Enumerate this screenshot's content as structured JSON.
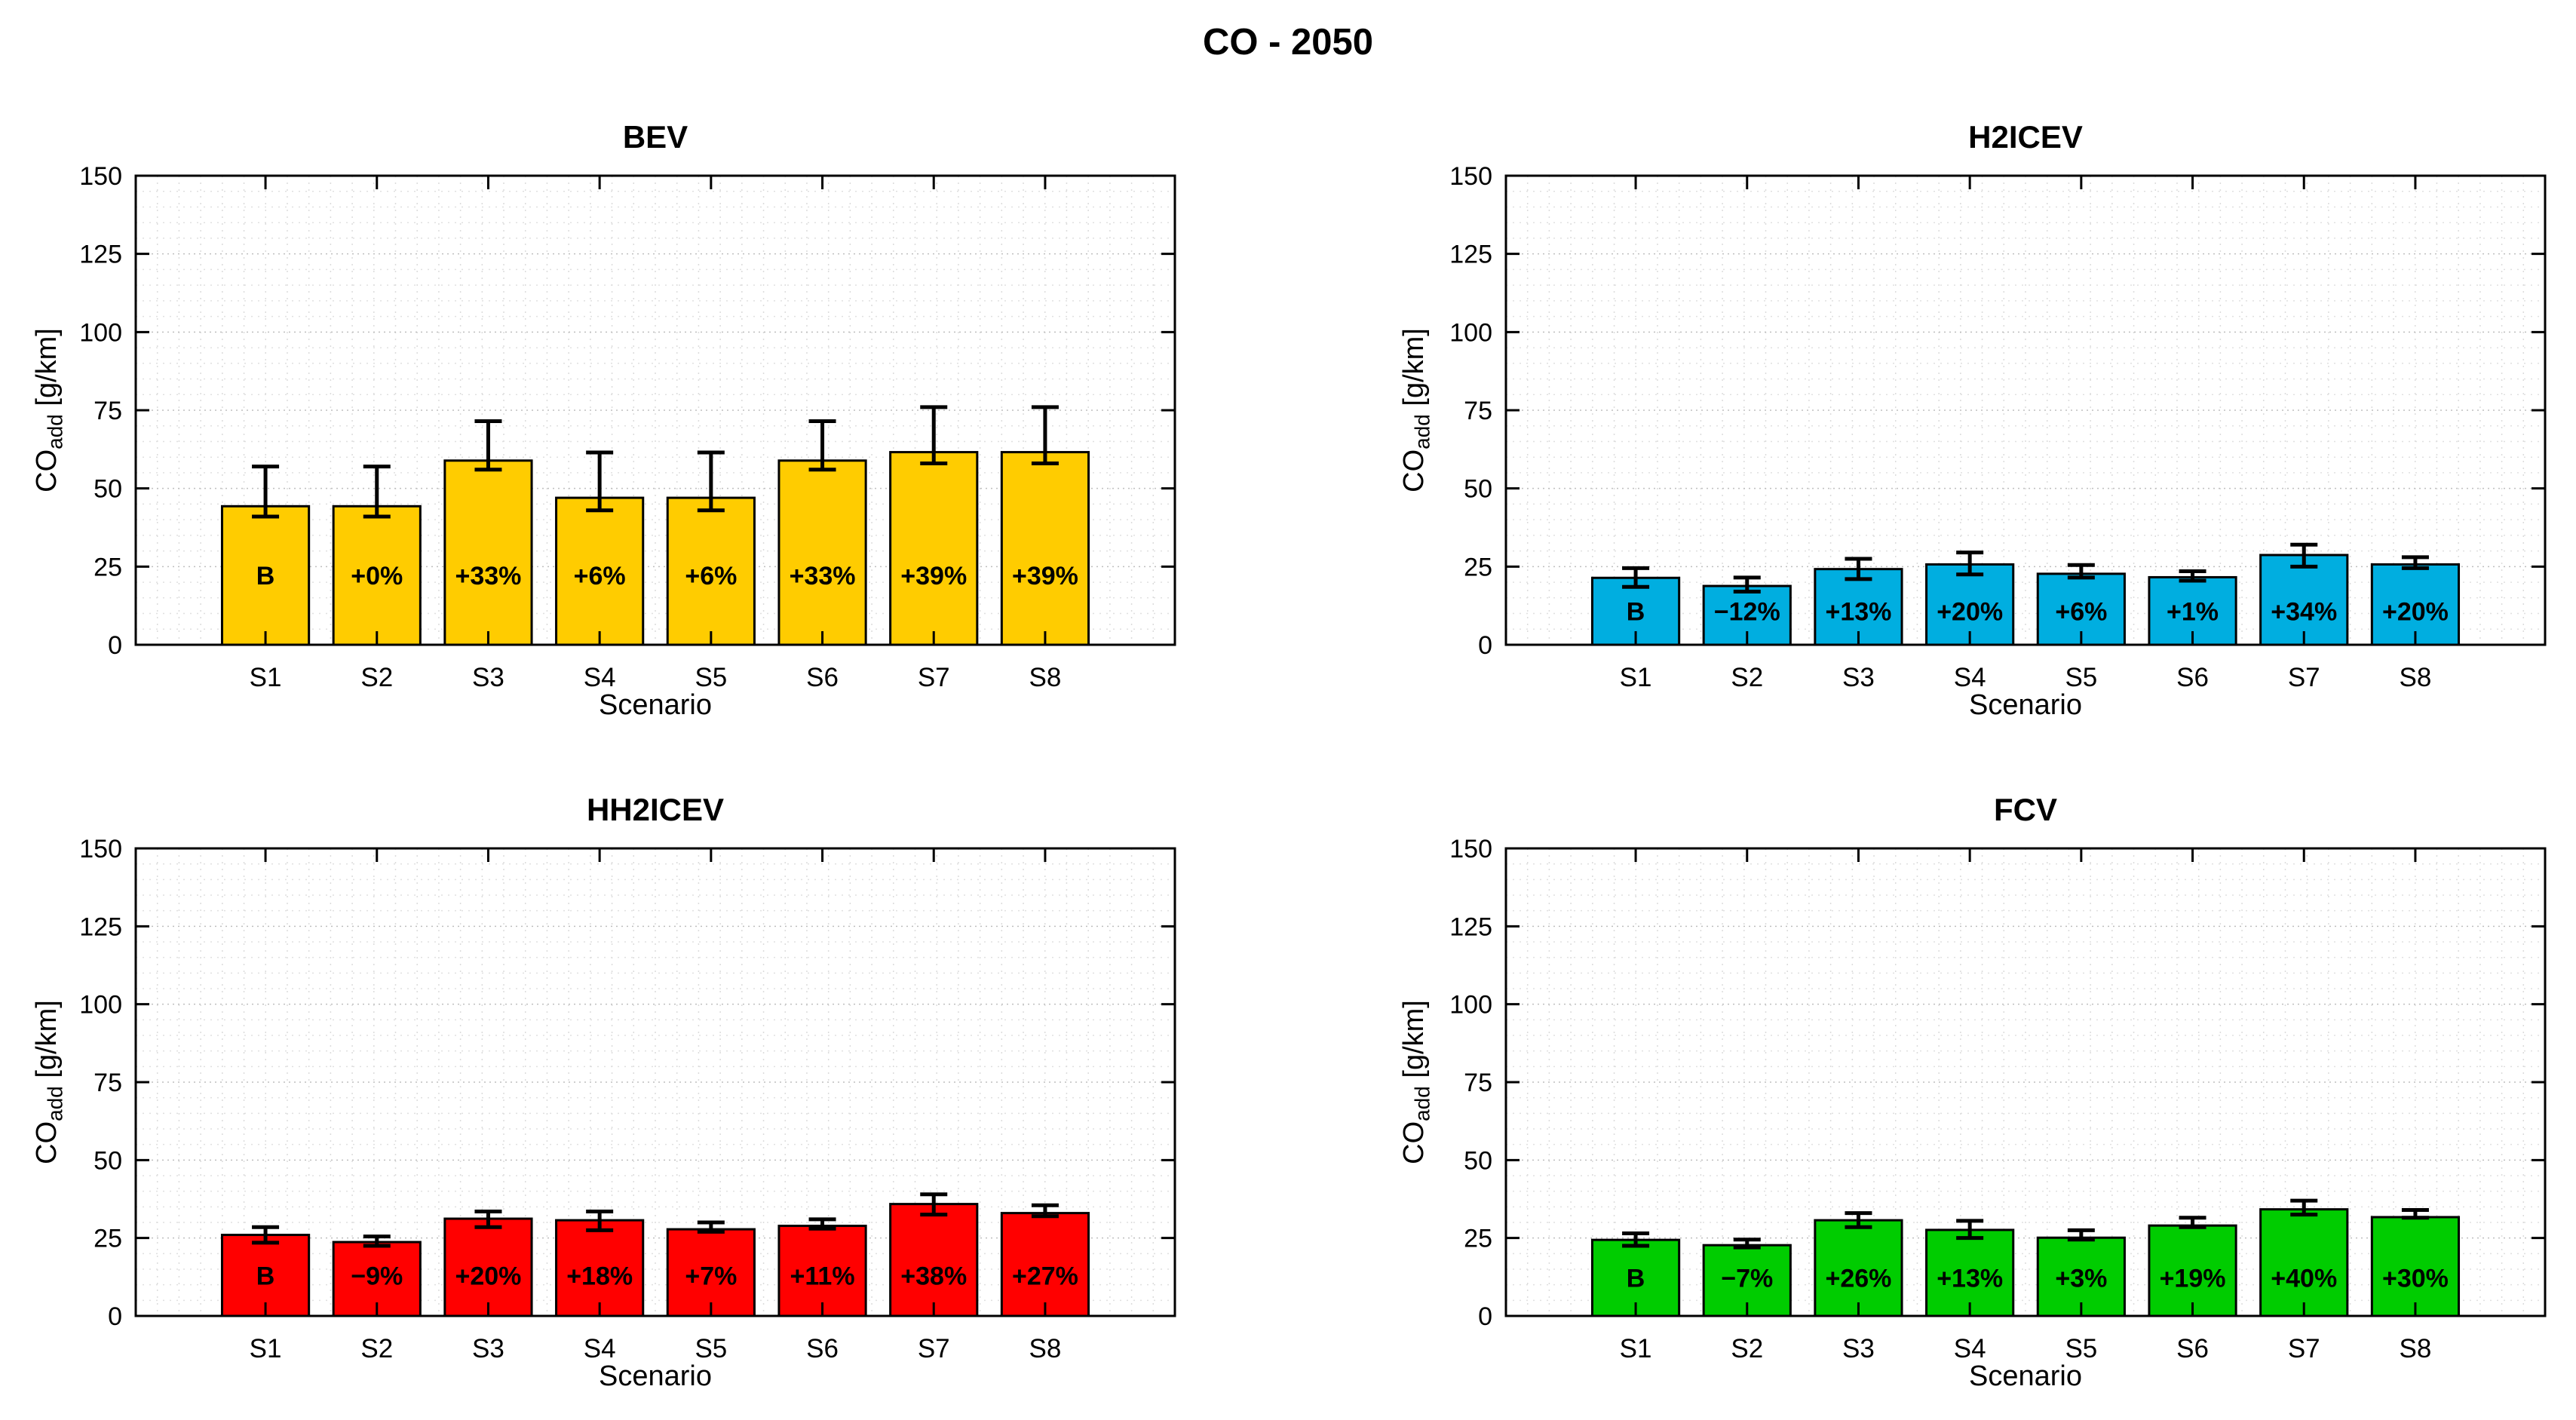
{
  "figure_title": "CO - 2050",
  "xlabel": "Scenario",
  "ylabel": {
    "prefix": "CO",
    "sub": "add",
    "suffix": " [g/km]"
  },
  "yticks": [
    0,
    25,
    50,
    75,
    100,
    125,
    150
  ],
  "ylim": [
    0,
    150
  ],
  "categories": [
    "S1",
    "S2",
    "S3",
    "S4",
    "S5",
    "S6",
    "S7",
    "S8"
  ],
  "chart_data": [
    {
      "type": "bar",
      "title": "BEV",
      "color": "#FFCC00",
      "categories": [
        "S1",
        "S2",
        "S3",
        "S4",
        "S5",
        "S6",
        "S7",
        "S8"
      ],
      "values": [
        44.3,
        44.3,
        58.9,
        47.0,
        47.0,
        58.9,
        61.6,
        61.6
      ],
      "bar_labels": [
        "B",
        "+0%",
        "+33%",
        "+6%",
        "+6%",
        "+33%",
        "+39%",
        "+39%"
      ],
      "err_low": [
        41,
        41,
        56,
        43,
        43,
        56,
        58,
        58
      ],
      "err_high": [
        57,
        57,
        71.5,
        61.5,
        61.5,
        71.5,
        76,
        76
      ],
      "xlabel": "Scenario",
      "ylabel": "CO_add [g/km]",
      "ylim": [
        0,
        150
      ]
    },
    {
      "type": "bar",
      "title": "H2ICEV",
      "color": "#00AEE0",
      "categories": [
        "S1",
        "S2",
        "S3",
        "S4",
        "S5",
        "S6",
        "S7",
        "S8"
      ],
      "values": [
        21.4,
        18.8,
        24.2,
        25.7,
        22.7,
        21.6,
        28.7,
        25.7
      ],
      "bar_labels": [
        "B",
        "−12%",
        "+13%",
        "+20%",
        "+6%",
        "+1%",
        "+34%",
        "+20%"
      ],
      "err_low": [
        18.5,
        17,
        21,
        22.5,
        21.5,
        20.5,
        25,
        24.5
      ],
      "err_high": [
        24.5,
        21.5,
        27.5,
        29.5,
        25.5,
        23.5,
        32,
        28
      ],
      "xlabel": "Scenario",
      "ylabel": "CO_add [g/km]",
      "ylim": [
        0,
        150
      ]
    },
    {
      "type": "bar",
      "title": "HH2ICEV",
      "color": "#FF0000",
      "categories": [
        "S1",
        "S2",
        "S3",
        "S4",
        "S5",
        "S6",
        "S7",
        "S8"
      ],
      "values": [
        26.0,
        23.7,
        31.2,
        30.7,
        27.8,
        28.9,
        35.9,
        33.0
      ],
      "bar_labels": [
        "B",
        "−9%",
        "+20%",
        "+18%",
        "+7%",
        "+11%",
        "+38%",
        "+27%"
      ],
      "err_low": [
        23.5,
        22.5,
        28.5,
        27.5,
        27,
        28,
        32.5,
        32
      ],
      "err_high": [
        28.5,
        25.5,
        33.5,
        33.5,
        30,
        31,
        39,
        35.5
      ],
      "xlabel": "Scenario",
      "ylabel": "CO_add [g/km]",
      "ylim": [
        0,
        150
      ]
    },
    {
      "type": "bar",
      "title": "FCV",
      "color": "#00CC00",
      "categories": [
        "S1",
        "S2",
        "S3",
        "S4",
        "S5",
        "S6",
        "S7",
        "S8"
      ],
      "values": [
        24.4,
        22.7,
        30.7,
        27.6,
        25.1,
        29.0,
        34.2,
        31.7
      ],
      "bar_labels": [
        "B",
        "−7%",
        "+26%",
        "+13%",
        "+3%",
        "+19%",
        "+40%",
        "+30%"
      ],
      "err_low": [
        22.5,
        22,
        28.5,
        25,
        24.5,
        28.5,
        32.5,
        31.5
      ],
      "err_high": [
        26.5,
        24.5,
        33,
        30.5,
        27.5,
        31.5,
        37,
        34
      ],
      "xlabel": "Scenario",
      "ylabel": "CO_add [g/km]",
      "ylim": [
        0,
        150
      ]
    }
  ]
}
